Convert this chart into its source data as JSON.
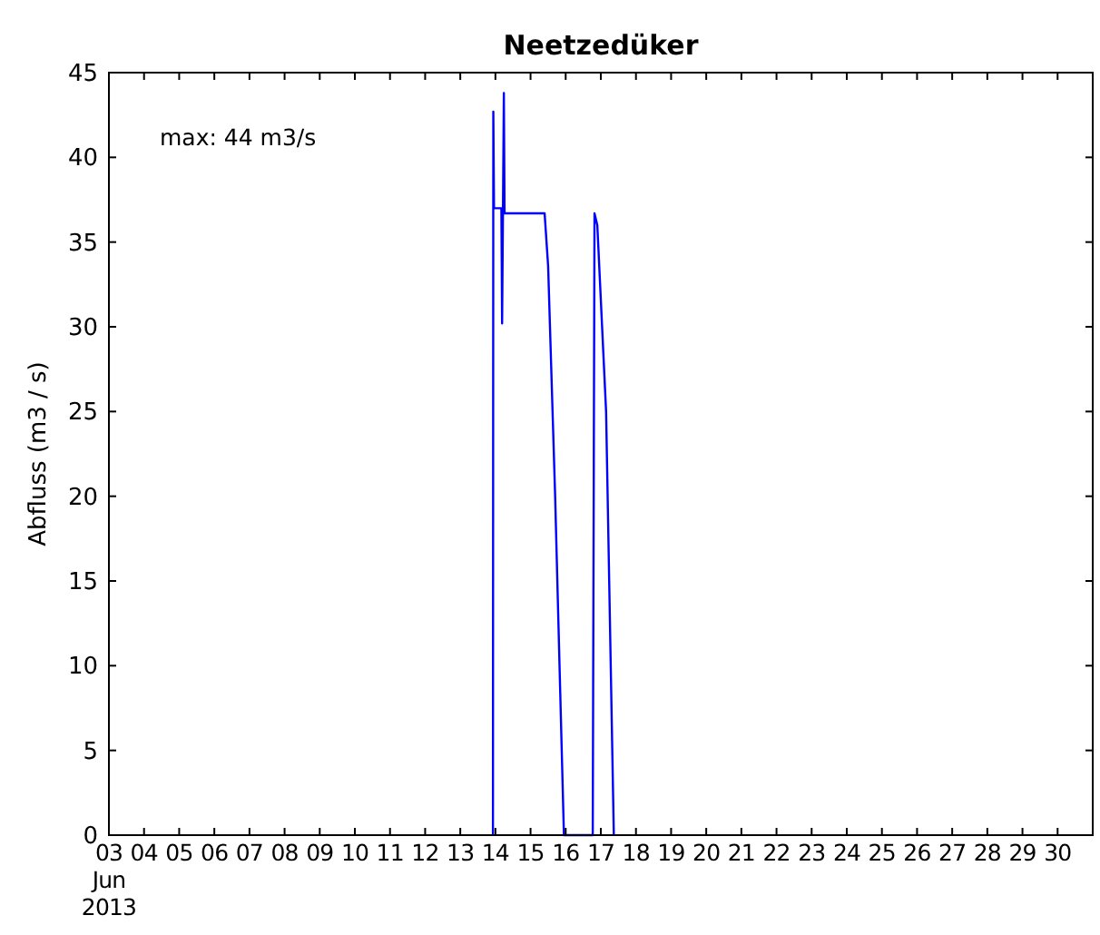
{
  "chart_data": {
    "type": "line",
    "title": "Neetzedüker",
    "ylabel": "Abfluss (m3 / s)",
    "annotations": [
      "max: 44 m3/s"
    ],
    "x": [
      "2013-06-13T22:19",
      "2013-06-13T22:34",
      "2013-06-13T23:02",
      "2013-06-14T04:05",
      "2013-06-14T04:34",
      "2013-06-14T05:46",
      "2013-06-14T06:14",
      "2013-06-15T09:36",
      "2013-06-15T12:00",
      "2013-06-15T16:48",
      "2013-06-15T22:48",
      "2013-06-16T18:29",
      "2013-06-16T19:41",
      "2013-06-16T21:36",
      "2013-06-17T03:36",
      "2013-06-17T08:53"
    ],
    "series": [
      {
        "color": "#0000ff",
        "values": [
          0,
          42.7,
          37,
          37,
          30.2,
          43.8,
          36.7,
          36.7,
          33.6,
          20,
          0,
          0,
          36.7,
          36,
          25,
          0
        ]
      }
    ],
    "xlim": [
      "2013-06-03",
      "2013-07-01"
    ],
    "xticks": [
      {
        "value": "2013-06-03",
        "label": "03\nJun\n2013"
      },
      {
        "value": "2013-06-04",
        "label": "04"
      },
      {
        "value": "2013-06-05",
        "label": "05"
      },
      {
        "value": "2013-06-06",
        "label": "06"
      },
      {
        "value": "2013-06-07",
        "label": "07"
      },
      {
        "value": "2013-06-08",
        "label": "08"
      },
      {
        "value": "2013-06-09",
        "label": "09"
      },
      {
        "value": "2013-06-10",
        "label": "10"
      },
      {
        "value": "2013-06-11",
        "label": "11"
      },
      {
        "value": "2013-06-12",
        "label": "12"
      },
      {
        "value": "2013-06-13",
        "label": "13"
      },
      {
        "value": "2013-06-14",
        "label": "14"
      },
      {
        "value": "2013-06-15",
        "label": "15"
      },
      {
        "value": "2013-06-16",
        "label": "16"
      },
      {
        "value": "2013-06-17",
        "label": "17"
      },
      {
        "value": "2013-06-18",
        "label": "18"
      },
      {
        "value": "2013-06-19",
        "label": "19"
      },
      {
        "value": "2013-06-20",
        "label": "20"
      },
      {
        "value": "2013-06-21",
        "label": "21"
      },
      {
        "value": "2013-06-22",
        "label": "22"
      },
      {
        "value": "2013-06-23",
        "label": "23"
      },
      {
        "value": "2013-06-24",
        "label": "24"
      },
      {
        "value": "2013-06-25",
        "label": "25"
      },
      {
        "value": "2013-06-26",
        "label": "26"
      },
      {
        "value": "2013-06-27",
        "label": "27"
      },
      {
        "value": "2013-06-28",
        "label": "28"
      },
      {
        "value": "2013-06-29",
        "label": "29"
      },
      {
        "value": "2013-06-30",
        "label": "30"
      }
    ],
    "ylim": [
      0,
      45
    ],
    "yticks": [
      0,
      5,
      10,
      15,
      20,
      25,
      30,
      35,
      40,
      45
    ],
    "grid": false,
    "marker": "none",
    "line_style": "solid"
  }
}
